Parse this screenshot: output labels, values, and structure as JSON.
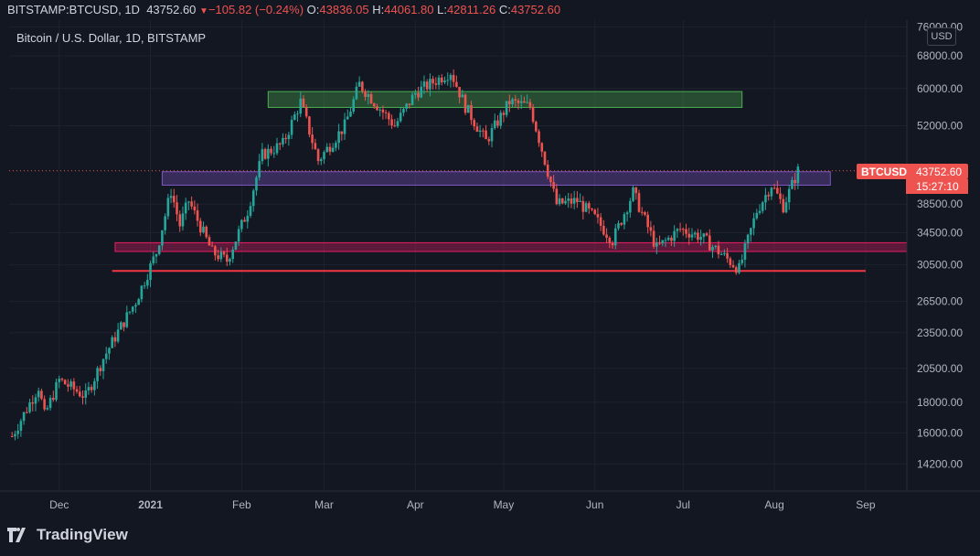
{
  "header": {
    "symbol": "BITSTAMP:BTCUSD, 1D",
    "last": "43752.60",
    "change": "−105.82 (−0.24%)",
    "o_label": "O:",
    "o": "43836.05",
    "h_label": "H:",
    "h": "44061.80",
    "l_label": "L:",
    "l": "42811.26",
    "c_label": "C:",
    "c": "43752.60"
  },
  "legend_title": "Bitcoin / U.S. Dollar, 1D, BITSTAMP",
  "currency_badge": "USD",
  "price_label": {
    "symbol": "BTCUSD",
    "value": "43752.60",
    "countdown": "15:27:10"
  },
  "brand": "TradingView",
  "colors": {
    "up": "#26a69a",
    "down": "#ef5350",
    "bg": "#131722",
    "grid": "#1e222d",
    "text": "#b2b5be"
  },
  "chart_data": {
    "type": "candlestick",
    "y_scale": "log",
    "ylim": [
      12800,
      78000
    ],
    "y_ticks": [
      "76000.00",
      "68000.00",
      "60000.00",
      "52000.00",
      "38500.00",
      "34500.00",
      "30500.00",
      "26500.00",
      "23500.00",
      "20500.00",
      "18000.00",
      "16000.00",
      "14200.00"
    ],
    "x_ticks": [
      "Dec",
      "2021",
      "Feb",
      "Mar",
      "Apr",
      "May",
      "Jun",
      "Jul",
      "Aug",
      "Sep"
    ],
    "x_range": [
      "2020-11-14",
      "2021-09-15"
    ],
    "closes": [
      {
        "date": "2020-11-15",
        "close": 15800
      },
      {
        "date": "2020-11-24",
        "close": 19100
      },
      {
        "date": "2020-11-26",
        "close": 17100
      },
      {
        "date": "2020-12-01",
        "close": 19600
      },
      {
        "date": "2020-12-10",
        "close": 18400
      },
      {
        "date": "2020-12-16",
        "close": 21300
      },
      {
        "date": "2020-12-21",
        "close": 23600
      },
      {
        "date": "2020-12-27",
        "close": 26500
      },
      {
        "date": "2021-01-03",
        "close": 32000
      },
      {
        "date": "2021-01-08",
        "close": 40500
      },
      {
        "date": "2021-01-11",
        "close": 35500
      },
      {
        "date": "2021-01-14",
        "close": 39000
      },
      {
        "date": "2021-01-22",
        "close": 32000
      },
      {
        "date": "2021-01-27",
        "close": 31000
      },
      {
        "date": "2021-02-03",
        "close": 37500
      },
      {
        "date": "2021-02-08",
        "close": 46500
      },
      {
        "date": "2021-02-15",
        "close": 48500
      },
      {
        "date": "2021-02-21",
        "close": 57000
      },
      {
        "date": "2021-02-27",
        "close": 45500
      },
      {
        "date": "2021-03-08",
        "close": 52000
      },
      {
        "date": "2021-03-13",
        "close": 61000
      },
      {
        "date": "2021-03-25",
        "close": 52000
      },
      {
        "date": "2021-04-01",
        "close": 59000
      },
      {
        "date": "2021-04-13",
        "close": 64000
      },
      {
        "date": "2021-04-18",
        "close": 56000
      },
      {
        "date": "2021-04-25",
        "close": 49000
      },
      {
        "date": "2021-05-03",
        "close": 57000
      },
      {
        "date": "2021-05-10",
        "close": 56000
      },
      {
        "date": "2021-05-13",
        "close": 49500
      },
      {
        "date": "2021-05-19",
        "close": 38500
      },
      {
        "date": "2021-05-26",
        "close": 39000
      },
      {
        "date": "2021-06-01",
        "close": 36500
      },
      {
        "date": "2021-06-07",
        "close": 33500
      },
      {
        "date": "2021-06-14",
        "close": 40300
      },
      {
        "date": "2021-06-22",
        "close": 32500
      },
      {
        "date": "2021-06-30",
        "close": 35000
      },
      {
        "date": "2021-07-07",
        "close": 34000
      },
      {
        "date": "2021-07-20",
        "close": 30000
      },
      {
        "date": "2021-07-26",
        "close": 37500
      },
      {
        "date": "2021-07-31",
        "close": 41500
      },
      {
        "date": "2021-08-04",
        "close": 38200
      },
      {
        "date": "2021-08-09",
        "close": 43752.6
      }
    ],
    "annotations": [
      {
        "type": "zone",
        "y1": 55800,
        "y2": 59300,
        "x1": "2021-02-10",
        "x2": "2021-07-21",
        "color": "#4caf50"
      },
      {
        "type": "zone",
        "y1": 41400,
        "y2": 43600,
        "x1": "2021-01-05",
        "x2": "2021-08-20",
        "color": "#7e57c2"
      },
      {
        "type": "zone",
        "y1": 32100,
        "y2": 33200,
        "x1": "2020-12-20",
        "x2": "2021-09-15",
        "color": "#e91e63"
      },
      {
        "type": "line",
        "y": 29800,
        "x1": "2020-12-19",
        "x2": "2021-09-01",
        "color": "#f23645"
      }
    ]
  }
}
